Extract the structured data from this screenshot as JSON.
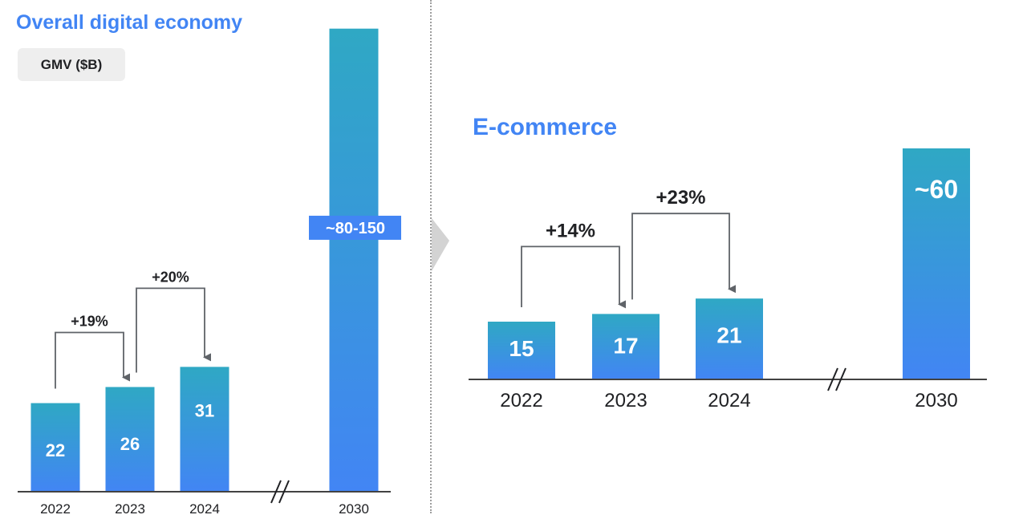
{
  "left_panel": {
    "title": "Overall digital economy",
    "unit": "GMV ($B)"
  },
  "right_panel": {
    "title": "E-commerce"
  },
  "colors": {
    "bar_bottom": "#4285f4",
    "bar_top": "#2fa8c4",
    "title": "#4285f4",
    "axis": "#424242"
  },
  "chart_data": [
    {
      "type": "bar",
      "title": "Overall digital economy",
      "ylabel": "GMV ($B)",
      "categories": [
        "2022",
        "2023",
        "2024",
        "2030"
      ],
      "values": [
        22,
        26,
        31,
        115
      ],
      "value_labels": [
        "22",
        "26",
        "31",
        "~80-150"
      ],
      "growth": [
        {
          "from": "2022",
          "to": "2023",
          "label": "+19%"
        },
        {
          "from": "2023",
          "to": "2024",
          "label": "+20%"
        }
      ],
      "axis_break_after": "2024"
    },
    {
      "type": "bar",
      "title": "E-commerce",
      "categories": [
        "2022",
        "2023",
        "2024",
        "2030"
      ],
      "values": [
        15,
        17,
        21,
        60
      ],
      "value_labels": [
        "15",
        "17",
        "21",
        "~60"
      ],
      "growth": [
        {
          "from": "2022",
          "to": "2023",
          "label": "+14%"
        },
        {
          "from": "2023",
          "to": "2024",
          "label": "+23%"
        }
      ],
      "axis_break_after": "2024"
    }
  ]
}
